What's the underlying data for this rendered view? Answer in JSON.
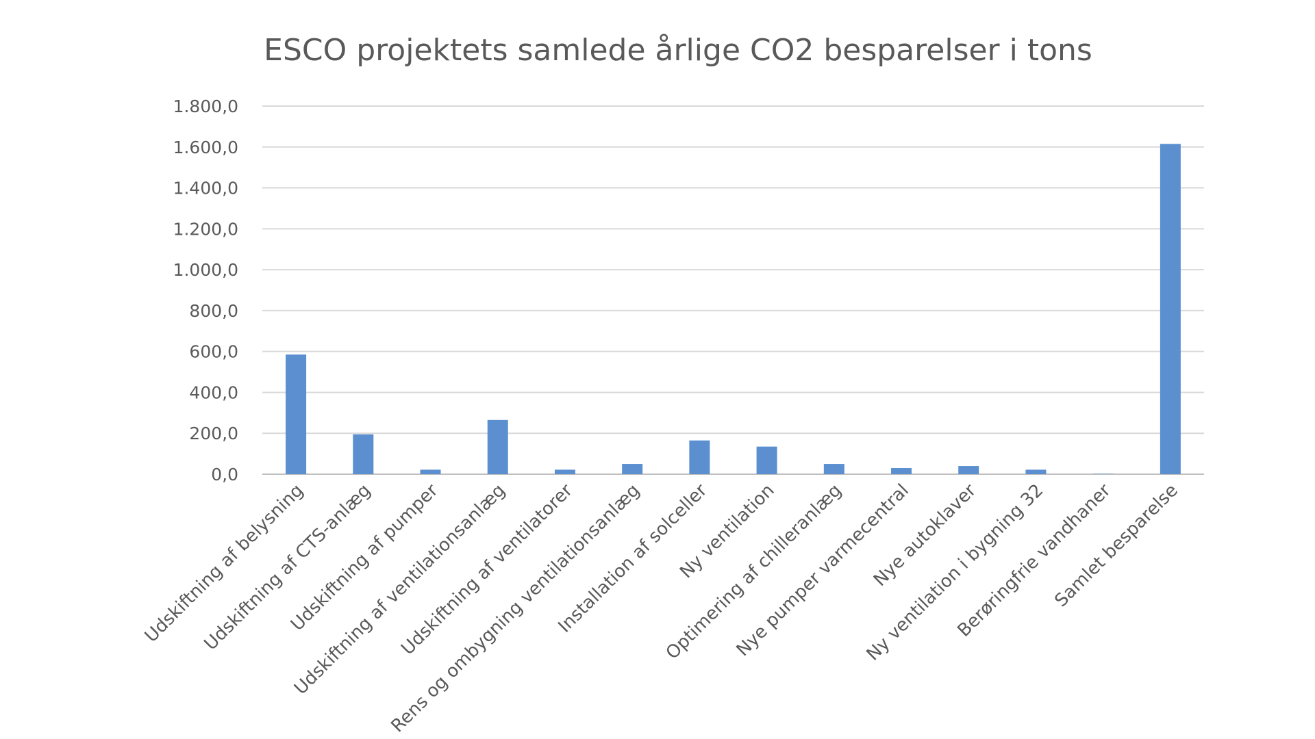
{
  "chart_data": {
    "type": "bar",
    "title": "ESCO projektets samlede årlige CO2 besparelser i tons",
    "xlabel": "",
    "ylabel": "",
    "ylim": [
      0,
      1800
    ],
    "yticks": [
      "0,0",
      "200,0",
      "400,0",
      "600,0",
      "800,0",
      "1.000,0",
      "1.200,0",
      "1.400,0",
      "1.600,0",
      "1.800,0"
    ],
    "grid": true,
    "legend": "none",
    "bar_color": "#5b8fd0",
    "categories": [
      "Udskiftning af belysning",
      "Udskiftning af CTS-anlæg",
      "Udskiftning af pumper",
      "Udskiftning af ventilationsanlæg",
      "Udskiftning af ventilatorer",
      "Rens og ombygning ventilationsanlæg",
      "Installation af solceller",
      "Ny ventilation",
      "Optimering af chilleranlæg",
      "Nye pumper varmecentral",
      "Nye autoklaver",
      "Ny ventilation i bygning 32",
      "Berøringfrie vandhaner",
      "Samlet besparelse"
    ],
    "values": [
      585,
      195,
      22,
      265,
      22,
      50,
      165,
      135,
      50,
      30,
      40,
      22,
      2,
      1615
    ]
  }
}
